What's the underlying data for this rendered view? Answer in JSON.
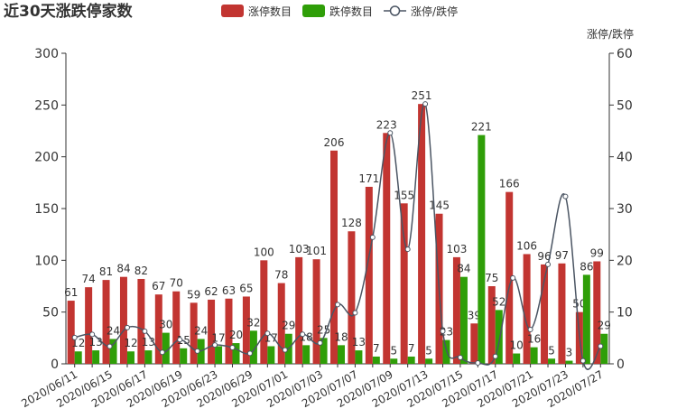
{
  "chart_data": {
    "type": "bar_line",
    "title": "近30天涨跌停家数",
    "categories": [
      "2020/06/11",
      null,
      "2020/06/15",
      null,
      "2020/06/17",
      null,
      "2020/06/19",
      null,
      "2020/06/23",
      null,
      "2020/06/29",
      null,
      "2020/07/01",
      null,
      "2020/07/03",
      null,
      "2020/07/07",
      null,
      "2020/07/09",
      null,
      "2020/07/13",
      null,
      "2020/07/15",
      null,
      "2020/07/17",
      null,
      "2020/07/21",
      null,
      "2020/07/23",
      null,
      "2020/07/27"
    ],
    "series": [
      {
        "name": "涨停数目",
        "type": "bar",
        "color": "#c23531",
        "values": [
          61,
          74,
          81,
          84,
          82,
          67,
          70,
          59,
          62,
          63,
          65,
          100,
          78,
          103,
          101,
          206,
          128,
          171,
          223,
          155,
          251,
          145,
          103,
          39,
          75,
          166,
          106,
          96,
          97,
          50,
          99
        ]
      },
      {
        "name": "跌停数目",
        "type": "bar",
        "color": "#2f9e08",
        "values": [
          12,
          13,
          24,
          12,
          13,
          30,
          15,
          24,
          17,
          20,
          32,
          17,
          29,
          18,
          25,
          18,
          13,
          7,
          5,
          7,
          5,
          23,
          84,
          221,
          52,
          10,
          16,
          5,
          3,
          86,
          29
        ]
      },
      {
        "name": "涨停/跌停",
        "type": "line",
        "axis": "y2",
        "color": "#4b5563",
        "values": [
          5.08,
          5.69,
          3.38,
          7.0,
          6.31,
          2.23,
          4.67,
          2.46,
          3.65,
          3.15,
          2.03,
          5.88,
          2.69,
          5.72,
          4.04,
          11.44,
          9.85,
          24.43,
          44.6,
          22.14,
          50.2,
          6.3,
          1.23,
          0.18,
          1.44,
          16.6,
          6.63,
          19.2,
          32.33,
          0.58,
          3.41
        ]
      }
    ],
    "ylim": [
      0,
      300
    ],
    "yticks": [
      0,
      50,
      100,
      150,
      200,
      250,
      300
    ],
    "y2lim": [
      0,
      60
    ],
    "y2ticks": [
      0,
      10,
      20,
      30,
      40,
      50,
      60
    ],
    "y2label": "涨停/跌停",
    "grid": false
  }
}
